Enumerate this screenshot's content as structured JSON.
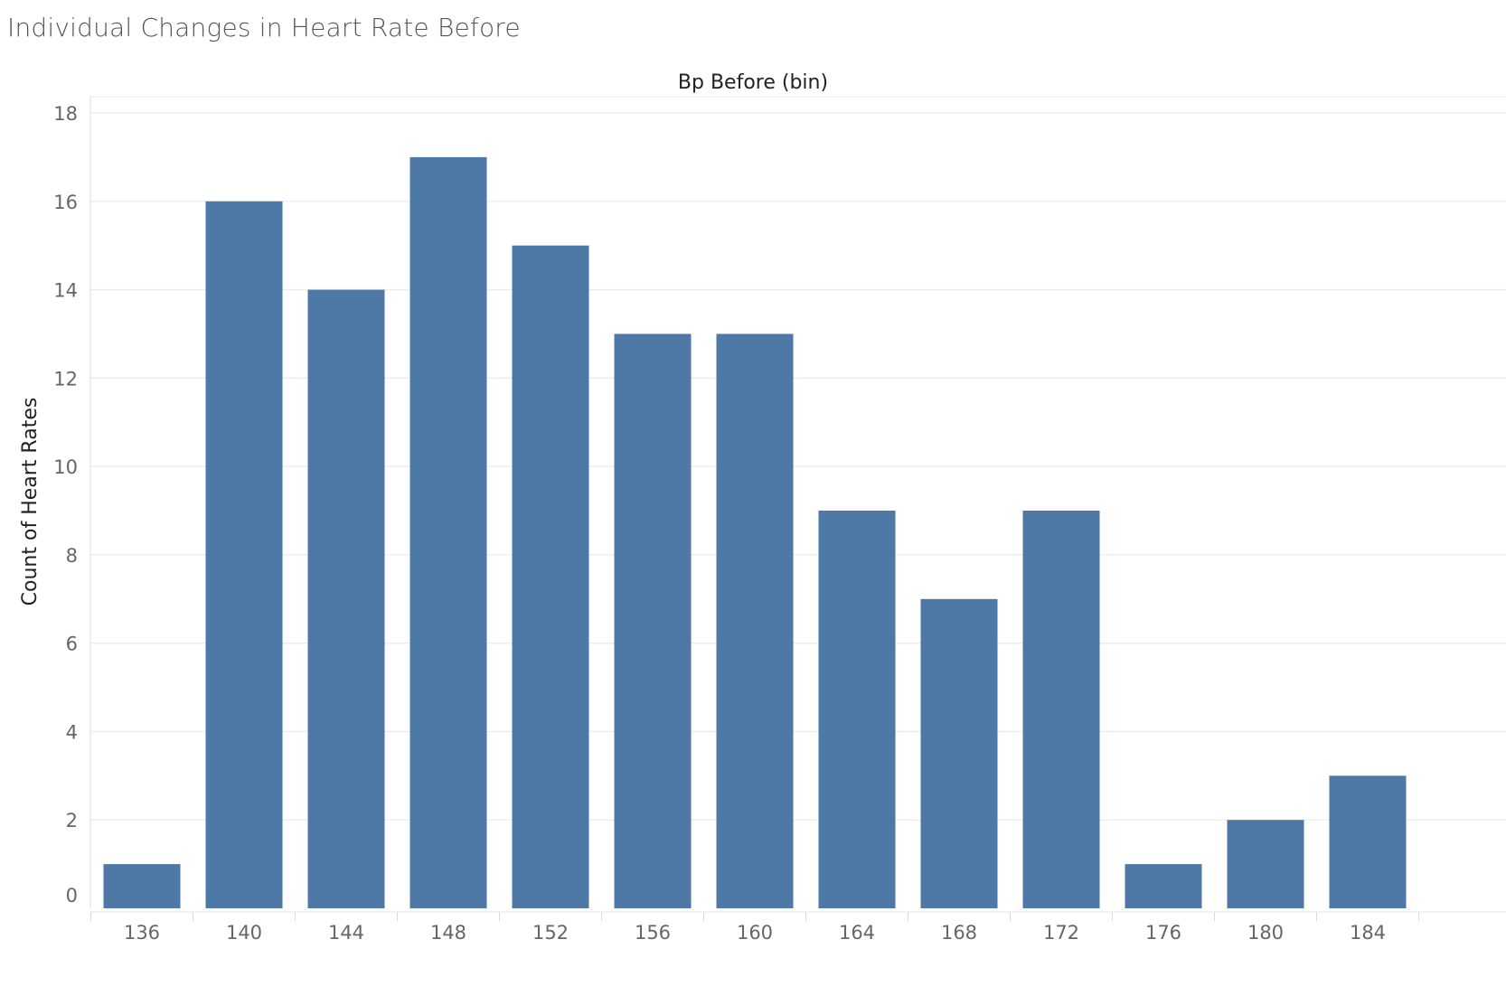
{
  "chart_data": {
    "type": "bar",
    "title": "Individual Changes in Heart Rate Before",
    "xlabel": "Bp Before (bin)",
    "ylabel": "Count of Heart Rates",
    "categories": [
      "136",
      "140",
      "144",
      "148",
      "152",
      "156",
      "160",
      "164",
      "168",
      "172",
      "176",
      "180",
      "184"
    ],
    "values": [
      1,
      16,
      14,
      17,
      15,
      13,
      13,
      9,
      7,
      9,
      1,
      2,
      3
    ],
    "ylim": [
      0,
      18
    ],
    "yticks": [
      "0",
      "2",
      "4",
      "6",
      "8",
      "10",
      "12",
      "14",
      "16",
      "18"
    ],
    "grid": true,
    "bar_color": "#4e79a7",
    "grid_color": "#ebebeb"
  }
}
